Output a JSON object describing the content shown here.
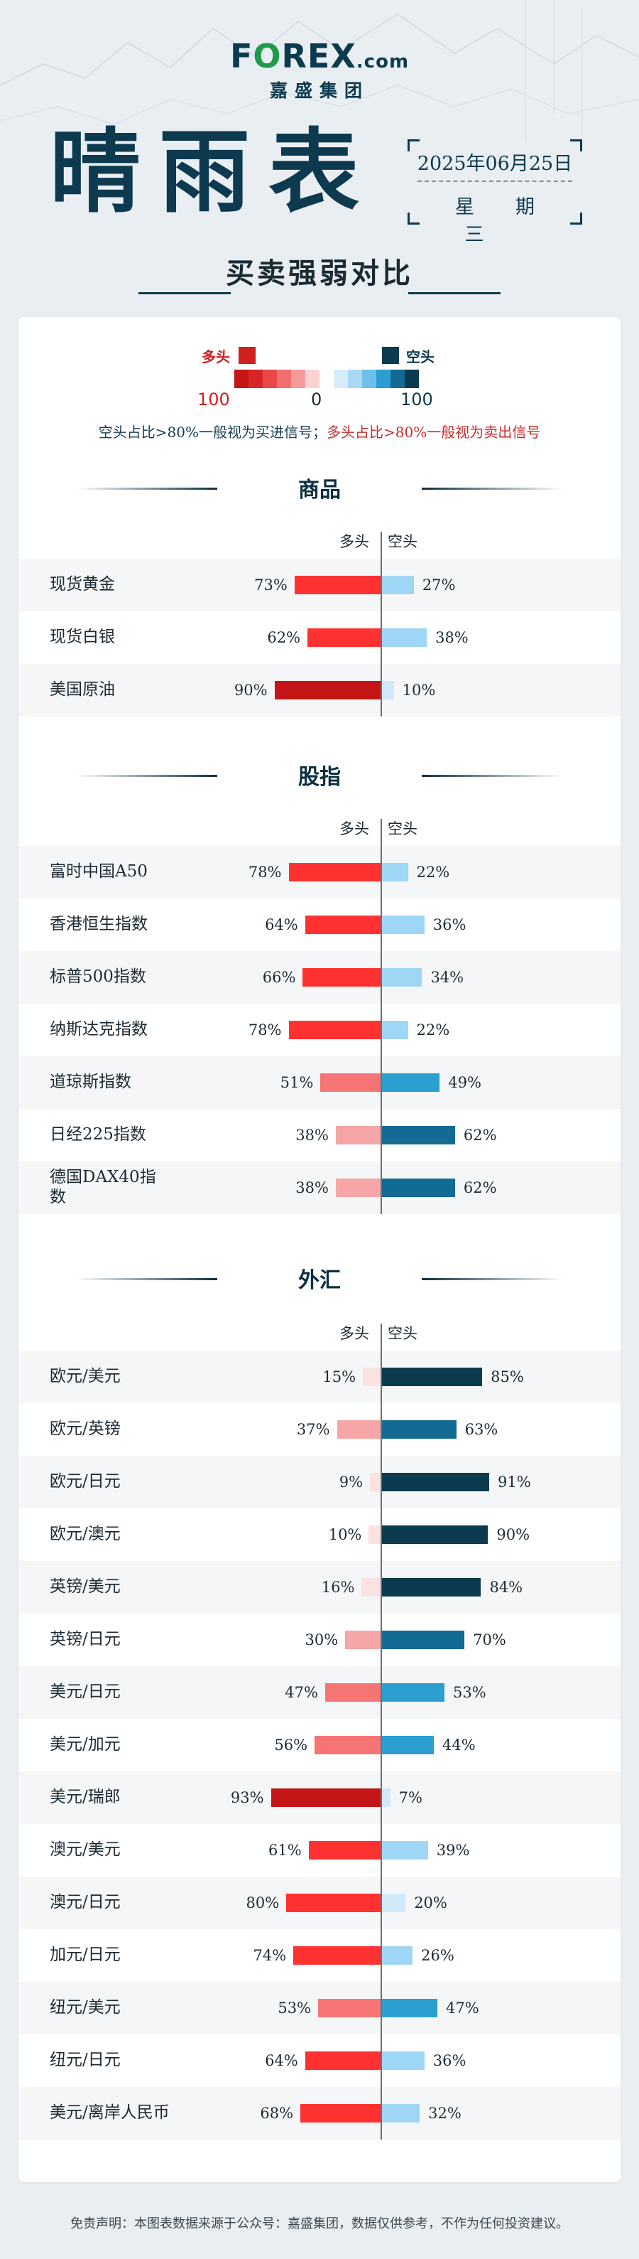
{
  "brand": {
    "logo_pre": "F",
    "logo_o": "O",
    "logo_mid": "REX",
    "logo_com": ".com",
    "group": "嘉盛集团"
  },
  "title": "晴雨表",
  "date": "2025年06月25日",
  "weekday": "星期三",
  "subtitle": "买卖强弱对比",
  "legend": {
    "bull": "多头",
    "bear": "空头",
    "left_val": "100",
    "mid_val": "0",
    "right_val": "100",
    "scale_colors": [
      "#c41616",
      "#d92525",
      "#e84848",
      "#f07070",
      "#f59a9a",
      "#fbd3d3",
      "#ffffff",
      "#d6ecf8",
      "#a9d8f4",
      "#6fc0e9",
      "#2a9fd0",
      "#136a92",
      "#0c3a4e"
    ]
  },
  "note": {
    "bear_rule": "空头占比>80%一般视为买进信号；",
    "bull_rule": "多头占比>80%一般视为卖出信号"
  },
  "colors": {
    "bull_dark": "#c41616",
    "bull": "#ff3131",
    "bull_mid": "#f77474",
    "bull_light": "#f6a6a6",
    "bull_pale": "#fde2e2",
    "bear_dark": "#0c3a4e",
    "bear": "#136a92",
    "bear_mid": "#2a9fd0",
    "bear_light": "#9fd6f6",
    "bear_pale": "#cfe9f9"
  },
  "headers": {
    "bull": "多头",
    "bear": "空头"
  },
  "sections": [
    {
      "title": "商品",
      "rows": [
        {
          "name": "现货黄金",
          "bull": 73,
          "bear": 27
        },
        {
          "name": "现货白银",
          "bull": 62,
          "bear": 38
        },
        {
          "name": "美国原油",
          "bull": 90,
          "bear": 10
        }
      ]
    },
    {
      "title": "股指",
      "rows": [
        {
          "name": "富时中国A50",
          "bull": 78,
          "bear": 22
        },
        {
          "name": "香港恒生指数",
          "bull": 64,
          "bear": 36
        },
        {
          "name": "标普500指数",
          "bull": 66,
          "bear": 34
        },
        {
          "name": "纳斯达克指数",
          "bull": 78,
          "bear": 22
        },
        {
          "name": "道琼斯指数",
          "bull": 51,
          "bear": 49
        },
        {
          "name": "日经225指数",
          "bull": 38,
          "bear": 62
        },
        {
          "name": "德国DAX40指数",
          "bull": 38,
          "bear": 62
        }
      ]
    },
    {
      "title": "外汇",
      "rows": [
        {
          "name": "欧元/美元",
          "bull": 15,
          "bear": 85
        },
        {
          "name": "欧元/英镑",
          "bull": 37,
          "bear": 63
        },
        {
          "name": "欧元/日元",
          "bull": 9,
          "bear": 91
        },
        {
          "name": "欧元/澳元",
          "bull": 10,
          "bear": 90
        },
        {
          "name": "英镑/美元",
          "bull": 16,
          "bear": 84
        },
        {
          "name": "英镑/日元",
          "bull": 30,
          "bear": 70
        },
        {
          "name": "美元/日元",
          "bull": 47,
          "bear": 53
        },
        {
          "name": "美元/加元",
          "bull": 56,
          "bear": 44
        },
        {
          "name": "美元/瑞郎",
          "bull": 93,
          "bear": 7
        },
        {
          "name": "澳元/美元",
          "bull": 61,
          "bear": 39
        },
        {
          "name": "澳元/日元",
          "bull": 80,
          "bear": 20
        },
        {
          "name": "加元/日元",
          "bull": 74,
          "bear": 26
        },
        {
          "name": "纽元/美元",
          "bull": 53,
          "bear": 47
        },
        {
          "name": "纽元/日元",
          "bull": 64,
          "bear": 36
        },
        {
          "name": "美元/离岸人民币",
          "bull": 68,
          "bear": 32
        }
      ]
    }
  ],
  "footer": "免责声明：本图表数据来源于公众号：嘉盛集团，数据仅供参考，不作为任何投资建议。"
}
